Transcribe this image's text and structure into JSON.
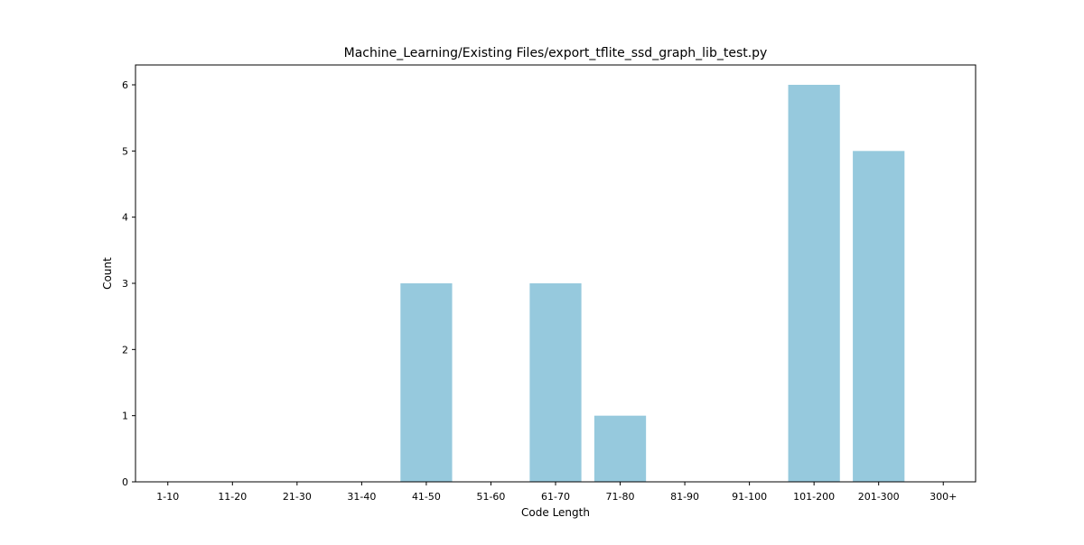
{
  "chart_data": {
    "type": "bar",
    "title": "Machine_Learning/Existing Files/export_tflite_ssd_graph_lib_test.py",
    "xlabel": "Code Length",
    "ylabel": "Count",
    "categories": [
      "1-10",
      "11-20",
      "21-30",
      "31-40",
      "41-50",
      "51-60",
      "61-70",
      "71-80",
      "81-90",
      "91-100",
      "101-200",
      "201-300",
      "300+"
    ],
    "values": [
      0,
      0,
      0,
      0,
      3,
      0,
      3,
      1,
      0,
      0,
      6,
      5,
      0
    ],
    "yticks": [
      "0",
      "1",
      "2",
      "3",
      "4",
      "5",
      "6"
    ],
    "ylim": [
      0,
      6.3
    ],
    "bar_color": "#96c9dd",
    "grid": false,
    "legend": "none"
  }
}
